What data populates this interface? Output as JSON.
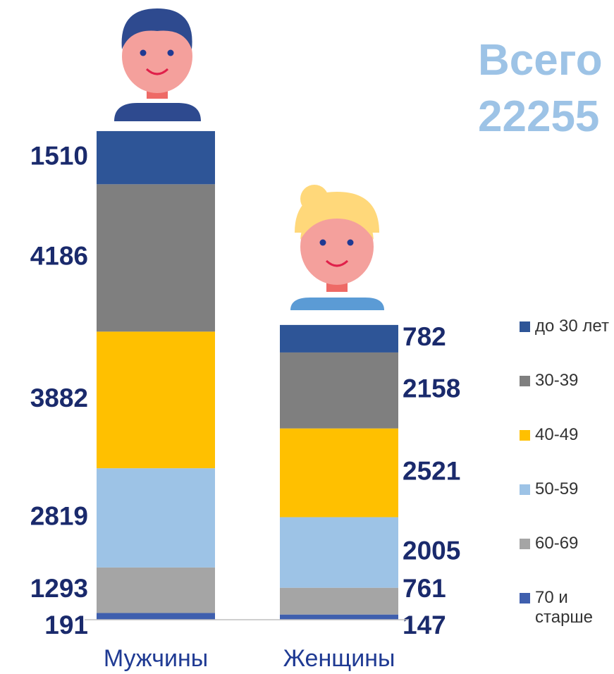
{
  "chart_data": {
    "type": "stacked-bar",
    "title": "Всего 22255",
    "categories": [
      "Мужчины",
      "Женщины"
    ],
    "series": [
      {
        "name": "70 и старше",
        "color": "#3f5fae",
        "values": [
          191,
          147
        ]
      },
      {
        "name": "60-69",
        "color": "#a5a5a5",
        "values": [
          1293,
          761
        ]
      },
      {
        "name": "50-59",
        "color": "#9dc3e6",
        "values": [
          2819,
          2005
        ]
      },
      {
        "name": "40-49",
        "color": "#ffc000",
        "values": [
          3882,
          2521
        ]
      },
      {
        "name": "30-39",
        "color": "#7f7f7f",
        "values": [
          4186,
          2158
        ]
      },
      {
        "name": "до 30 лет",
        "color": "#2e5597",
        "values": [
          1510,
          782
        ]
      }
    ],
    "ylim": [
      0,
      14000
    ]
  }
}
